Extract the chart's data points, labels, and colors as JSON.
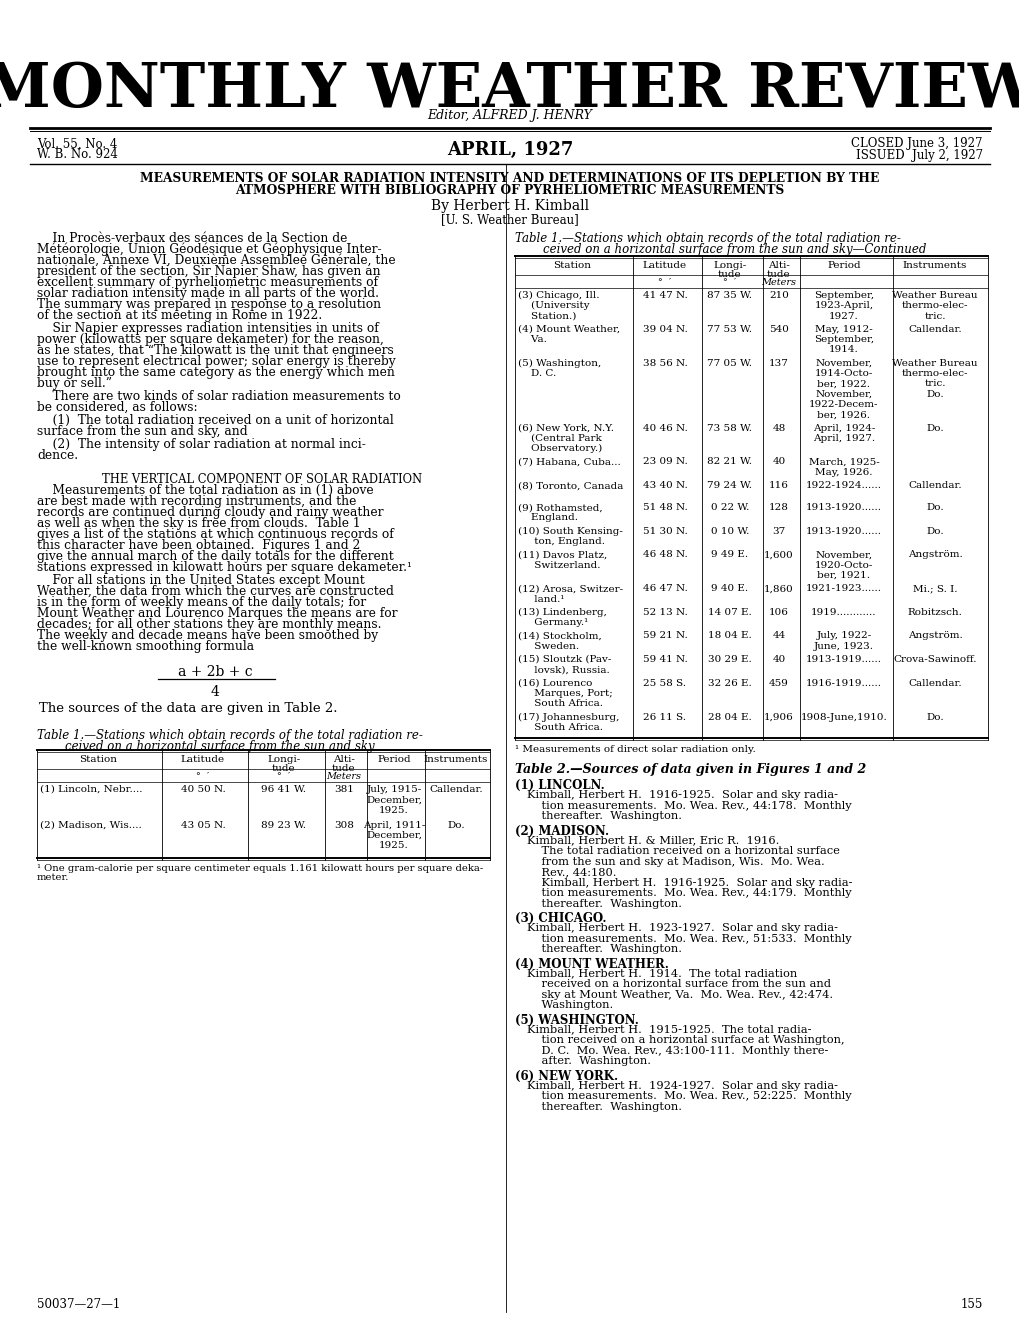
{
  "title": "MONTHLY WEATHER REVIEW",
  "editor": "Editor, ALFRED J. HENRY",
  "vol_line1": "Vol. 55, No. 4",
  "vol_line2": "W. B. No. 924",
  "month": "APRIL, 1927",
  "closed": "CLOSED June 3, 1927",
  "issued": "ISSUED  July 2, 1927",
  "article_title_line1": "MEASUREMENTS OF SOLAR RADIATION INTENSITY AND DETERMINATIONS OF ITS DEPLETION BY THE",
  "article_title_line2": "ATMOSPHERE WITH BIBLIOGRAPHY OF PYRHELIOMETRIC MEASUREMENTS",
  "author_line": "By Herbert H. Kimball",
  "affiliation": "[U. S. Weather Bureau]",
  "sec_head": "THE VERTICAL COMPONENT OF SOLAR RADIATION",
  "formula_num": "a + 2b + c",
  "formula_den": "4",
  "formula_note": "The sources of the data are given in Table 2.",
  "page_num_left": "50037—27—1",
  "page_num_right": "155",
  "right_table_rows": [
    [
      "(3) Chicago, Ill.\n    (University\n    Station.)",
      "41 47 N.",
      "87 35 W.",
      "210",
      "September,\n1923-April,\n1927.",
      "Weather Bureau\nthermo-elec-\ntric."
    ],
    [
      "(4) Mount Weather,\n    Va.",
      "39 04 N.",
      "77 53 W.",
      "540",
      "May, 1912-\nSeptember,\n1914.",
      "Callendar."
    ],
    [
      "(5) Washington,\n    D. C.",
      "38 56 N.",
      "77 05 W.",
      "137",
      "November,\n1914-Octo-\nber, 1922.\nNovember,\n1922-Decem-\nber, 1926.",
      "Weather Bureau\nthermo-elec-\ntric.\nDo."
    ],
    [
      "(6) New York, N.Y.\n    (Central Park\n    Observatory.)",
      "40 46 N.",
      "73 58 W.",
      "48",
      "April, 1924-\nApril, 1927.",
      "Do."
    ],
    [
      "(7) Habana, Cuba...",
      "23 09 N.",
      "82 21 W.",
      "40",
      "March, 1925-\nMay, 1926.",
      ""
    ],
    [
      "(8) Toronto, Canada",
      "43 40 N.",
      "79 24 W.",
      "116",
      "1922-1924......",
      "Callendar."
    ],
    [
      "(9) Rothamsted,\n    England.",
      "51 48 N.",
      "0 22 W.",
      "128",
      "1913-1920......",
      "Do."
    ],
    [
      "(10) South Kensing-\n     ton, England.",
      "51 30 N.",
      "0 10 W.",
      "37",
      "1913-1920......",
      "Do."
    ],
    [
      "(11) Davos Platz,\n     Switzerland.",
      "46 48 N.",
      "9 49 E.",
      "1,600",
      "November,\n1920-Octo-\nber, 1921.",
      "Angström."
    ],
    [
      "(12) Arosa, Switzer-\n     land.¹",
      "46 47 N.",
      "9 40 E.",
      "1,860",
      "1921-1923......",
      "Mi.; S. I."
    ],
    [
      "(13) Lindenberg,\n     Germany.¹",
      "52 13 N.",
      "14 07 E.",
      "106",
      "1919............",
      "Robitzsch."
    ],
    [
      "(14) Stockholm,\n     Sweden.",
      "59 21 N.",
      "18 04 E.",
      "44",
      "July, 1922-\nJune, 1923.",
      "Angström."
    ],
    [
      "(15) Sloutzk (Pav-\n     lovsk), Russia.",
      "59 41 N.",
      "30 29 E.",
      "40",
      "1913-1919......",
      "Crova-Sawinoff."
    ],
    [
      "(16) Lourenco\n     Marques, Port;\n     South Africa.",
      "25 58 S.",
      "32 26 E.",
      "459",
      "1916-1919......",
      "Callendar."
    ],
    [
      "(17) Johannesburg,\n     South Africa.",
      "26 11 S.",
      "28 04 E.",
      "1,906",
      "1908-June,1910.",
      "Do."
    ]
  ],
  "table2_entries": [
    [
      "(1) Lincoln.",
      "Kimball, Herbert H.  1916-1925.  Solar and sky radia-\n    tion measurements.  Mo. Wea. Rev., 44:178.  Monthly\n    thereafter.  Washington."
    ],
    [
      "(2) Madison.",
      "Kimball, Herbert H. & Miller, Eric R.  1916.\n    The total radiation received on a horizontal surface\n    from the sun and sky at Madison, Wis.  Mo. Wea.\n    Rev., 44:180.\n    Kimball, Herbert H.  1916-1925.  Solar and sky radia-\n    tion measurements.  Mo. Wea. Rev., 44:179.  Monthly\n    thereafter.  Washington."
    ],
    [
      "(3) Chicago.",
      "Kimball, Herbert H.  1923-1927.  Solar and sky radia-\n    tion measurements.  Mo. Wea. Rev., 51:533.  Monthly\n    thereafter.  Washington."
    ],
    [
      "(4) Mount Weather.",
      "Kimball, Herbert H.  1914.  The total radiation\n    received on a horizontal surface from the sun and\n    sky at Mount Weather, Va.  Mo. Wea. Rev., 42:474.\n    Washington."
    ],
    [
      "(5) Washington.",
      "Kimball, Herbert H.  1915-1925.  The total radia-\n    tion received on a horizontal surface at Washington,\n    D. C.  Mo. Wea. Rev., 43:100-111.  Monthly there-\n    after.  Washington."
    ],
    [
      "(6) New York.",
      "Kimball, Herbert H.  1924-1927.  Solar and sky radia-\n    tion measurements.  Mo. Wea. Rev., 52:225.  Monthly\n    thereafter.  Washington."
    ]
  ],
  "bg_color": "#ffffff",
  "text_color": "#000000"
}
